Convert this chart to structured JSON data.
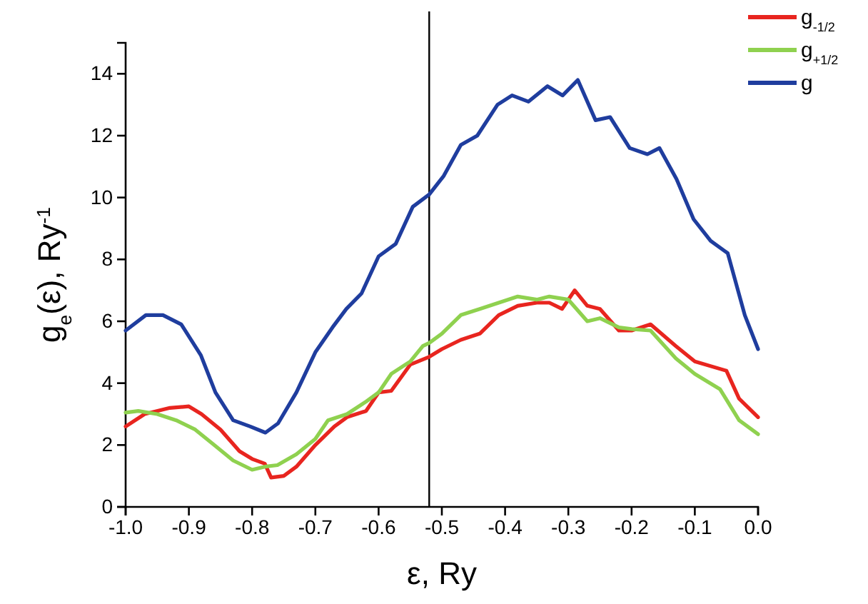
{
  "chart_data": {
    "type": "line",
    "xlabel": "ε, Ry",
    "ylabel": "g$_{e}$(ε), Ry$^{-1}$",
    "xlim": [
      -1.0,
      0.0
    ],
    "ylim": [
      0,
      15
    ],
    "xticks": [
      {
        "value": -1.0,
        "label": "-1.0"
      },
      {
        "value": -0.9,
        "label": "-0.9"
      },
      {
        "value": -0.8,
        "label": "-0.8"
      },
      {
        "value": -0.7,
        "label": "-0.7"
      },
      {
        "value": -0.6,
        "label": "-0.6"
      },
      {
        "value": -0.5,
        "label": "-0.5"
      },
      {
        "value": -0.4,
        "label": "-0.4"
      },
      {
        "value": -0.3,
        "label": "-0.3"
      },
      {
        "value": -0.2,
        "label": "-0.2"
      },
      {
        "value": -0.1,
        "label": "-0.1"
      },
      {
        "value": 0.0,
        "label": "0.0"
      }
    ],
    "yticks": [
      0,
      2,
      4,
      6,
      8,
      10,
      12,
      14
    ],
    "legend": "top right",
    "grid": false,
    "marker": "none",
    "line_style": "solid",
    "ref_lines": [
      {
        "axis": "x",
        "value": -0.52,
        "color": "#000000"
      }
    ],
    "series": [
      {
        "name": "g$_{-1/2}$",
        "color": "#e8251f",
        "x": [
          -1.0,
          -0.97,
          -0.93,
          -0.9,
          -0.88,
          -0.85,
          -0.82,
          -0.8,
          -0.78,
          -0.77,
          -0.75,
          -0.73,
          -0.7,
          -0.67,
          -0.65,
          -0.62,
          -0.6,
          -0.58,
          -0.55,
          -0.52,
          -0.5,
          -0.47,
          -0.44,
          -0.41,
          -0.38,
          -0.35,
          -0.33,
          -0.31,
          -0.29,
          -0.27,
          -0.25,
          -0.22,
          -0.2,
          -0.17,
          -0.13,
          -0.1,
          -0.05,
          -0.03,
          0.0
        ],
        "values": [
          2.6,
          3.0,
          3.2,
          3.25,
          3.0,
          2.5,
          1.8,
          1.55,
          1.4,
          0.95,
          1.0,
          1.3,
          2.0,
          2.6,
          2.9,
          3.1,
          3.7,
          3.75,
          4.6,
          4.85,
          5.1,
          5.4,
          5.6,
          6.2,
          6.5,
          6.6,
          6.6,
          6.4,
          7.0,
          6.5,
          6.4,
          5.7,
          5.7,
          5.9,
          5.2,
          4.7,
          4.4,
          3.5,
          2.9
        ]
      },
      {
        "name": "g$_{+1/2}$",
        "color": "#8fd14f",
        "x": [
          -1.0,
          -0.98,
          -0.95,
          -0.92,
          -0.89,
          -0.86,
          -0.83,
          -0.8,
          -0.78,
          -0.76,
          -0.73,
          -0.7,
          -0.68,
          -0.65,
          -0.62,
          -0.6,
          -0.58,
          -0.55,
          -0.53,
          -0.52,
          -0.5,
          -0.47,
          -0.44,
          -0.41,
          -0.38,
          -0.35,
          -0.33,
          -0.3,
          -0.27,
          -0.25,
          -0.22,
          -0.2,
          -0.17,
          -0.13,
          -0.1,
          -0.06,
          -0.03,
          0.0
        ],
        "values": [
          3.05,
          3.1,
          3.0,
          2.8,
          2.5,
          2.0,
          1.5,
          1.2,
          1.3,
          1.35,
          1.7,
          2.2,
          2.8,
          3.0,
          3.4,
          3.7,
          4.3,
          4.7,
          5.2,
          5.3,
          5.6,
          6.2,
          6.4,
          6.6,
          6.8,
          6.7,
          6.8,
          6.7,
          6.0,
          6.1,
          5.8,
          5.75,
          5.7,
          4.8,
          4.3,
          3.8,
          2.8,
          2.35
        ]
      },
      {
        "name": "g",
        "color": "#1f3d9e",
        "x": [
          -1.0,
          -0.968,
          -0.941,
          -0.912,
          -0.881,
          -0.858,
          -0.83,
          -0.803,
          -0.779,
          -0.759,
          -0.73,
          -0.7,
          -0.673,
          -0.651,
          -0.627,
          -0.6,
          -0.573,
          -0.546,
          -0.52,
          -0.497,
          -0.47,
          -0.444,
          -0.412,
          -0.389,
          -0.363,
          -0.333,
          -0.309,
          -0.285,
          -0.257,
          -0.234,
          -0.203,
          -0.175,
          -0.156,
          -0.129,
          -0.102,
          -0.075,
          -0.048,
          -0.021,
          0.0
        ],
        "values": [
          5.7,
          6.2,
          6.2,
          5.9,
          4.9,
          3.7,
          2.8,
          2.6,
          2.4,
          2.7,
          3.7,
          5.0,
          5.8,
          6.4,
          6.9,
          8.1,
          8.5,
          9.7,
          10.1,
          10.7,
          11.7,
          12.0,
          13.0,
          13.3,
          13.1,
          13.6,
          13.3,
          13.8,
          12.5,
          12.6,
          11.6,
          11.4,
          11.6,
          10.6,
          9.3,
          8.6,
          8.2,
          6.2,
          5.1
        ]
      }
    ]
  }
}
